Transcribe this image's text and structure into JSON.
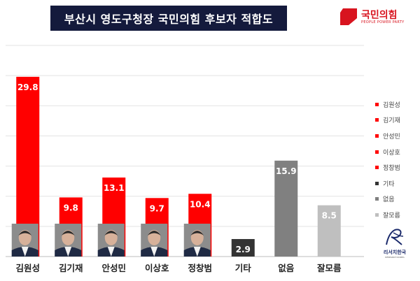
{
  "title": "부산시 영도구청장 국민의힘 후보자 적합도",
  "party_logo": {
    "name": "국민의힘",
    "english": "PEOPLE POWER PARTY",
    "color": "#d8141f"
  },
  "pollster_logo": {
    "name": "리서치한국",
    "english": "RESEARCH KOREA"
  },
  "colors": {
    "candidate": "#ff0000",
    "other": "#333333",
    "none": "#808080",
    "dontknow": "#bfbfbf",
    "title_bg": "#141a3c"
  },
  "chart_data": {
    "type": "bar",
    "title": "부산시 영도구청장 국민의힘 후보자 적합도",
    "categories": [
      "김원성",
      "김기재",
      "안성민",
      "이상호",
      "정창범",
      "기타",
      "없음",
      "잘모름"
    ],
    "values": [
      29.8,
      9.8,
      13.1,
      9.7,
      10.4,
      2.9,
      15.9,
      8.5
    ],
    "value_labels": [
      "29.8",
      "9.8",
      "13.1",
      "9.7",
      "10.4",
      "2.9",
      "15.9",
      "8.5"
    ],
    "bar_colors": [
      "#ff0000",
      "#ff0000",
      "#ff0000",
      "#ff0000",
      "#ff0000",
      "#333333",
      "#808080",
      "#bfbfbf"
    ],
    "candidate_photo": [
      true,
      true,
      true,
      true,
      true,
      false,
      false,
      false
    ],
    "xlabel": "",
    "ylabel": "",
    "ylim": [
      0,
      35
    ],
    "grid": true,
    "legend_position": "right"
  },
  "legend": [
    {
      "label": "김원성",
      "color": "#ff0000"
    },
    {
      "label": "김기재",
      "color": "#ff0000"
    },
    {
      "label": "안성민",
      "color": "#ff0000"
    },
    {
      "label": "이상호",
      "color": "#ff0000"
    },
    {
      "label": "정창범",
      "color": "#ff0000"
    },
    {
      "label": "기타",
      "color": "#333333"
    },
    {
      "label": "없음",
      "color": "#808080"
    },
    {
      "label": "잘모름",
      "color": "#bfbfbf"
    }
  ]
}
